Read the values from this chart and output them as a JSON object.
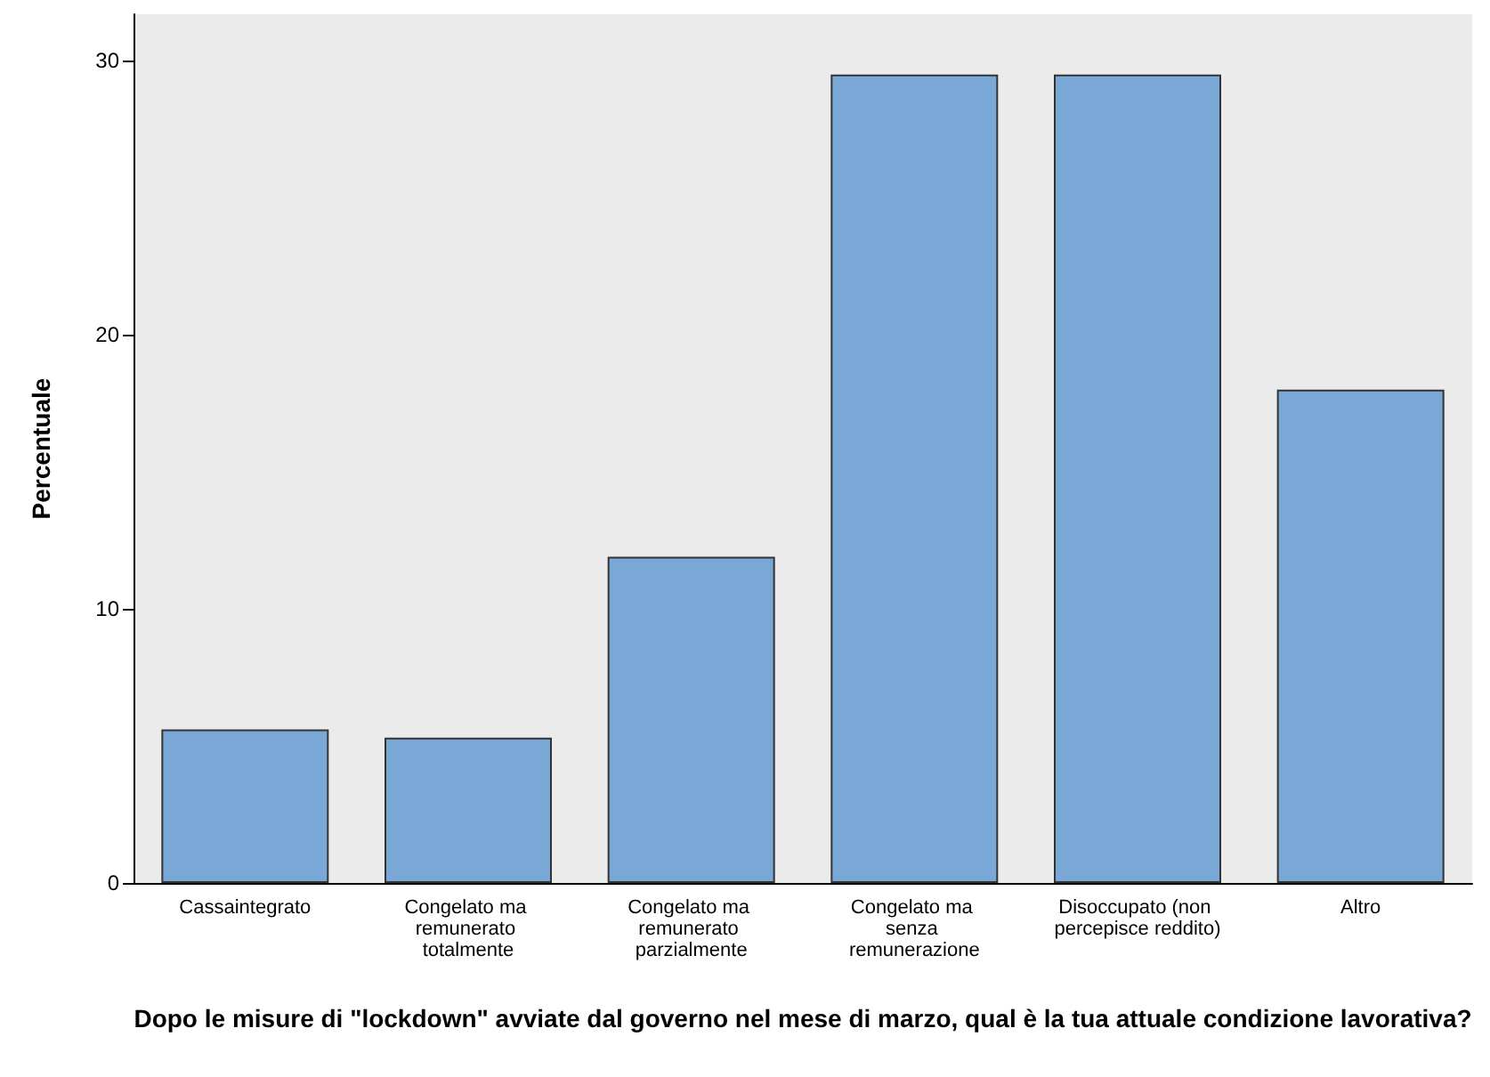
{
  "chart_data": {
    "type": "bar",
    "categories": [
      "Cassaintegrato",
      "Congelato ma remunerato totalmente",
      "Congelato ma remunerato parzialmente",
      "Congelato ma senza remunerazione",
      "Disoccupato (non percepisce reddito)",
      "Altro"
    ],
    "values": [
      5.6,
      5.3,
      11.9,
      29.5,
      29.5,
      18.0
    ],
    "color": "#79a8d6",
    "xlabel": "Dopo le misure di \"lockdown\" avviate dal governo nel mese di marzo, qual è la tua attuale condizione lavorativa?",
    "ylabel": "Percentuale",
    "ylim": [
      0,
      31.7
    ],
    "yticks": [
      0,
      10,
      20,
      30
    ],
    "grid": false
  }
}
